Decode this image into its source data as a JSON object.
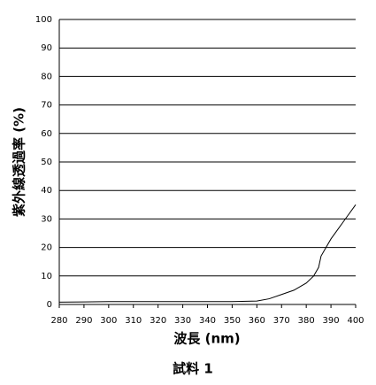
{
  "chart_data": {
    "type": "line",
    "title": "試料 1",
    "x_label": "波長 (nm)",
    "y_label": "紫外線透過率 (%)",
    "x": [
      280,
      290,
      300,
      310,
      320,
      330,
      340,
      350,
      360,
      365,
      370,
      375,
      380,
      383,
      385,
      386,
      388,
      390,
      395,
      400
    ],
    "series": [
      {
        "name": "試料 1",
        "color": "#000000",
        "values": [
          0.8,
          0.9,
          1,
          1,
          1,
          1,
          1,
          1,
          1.2,
          2,
          3.5,
          5,
          7.5,
          10,
          13,
          17,
          20,
          23,
          29,
          35
        ]
      }
    ],
    "xlim": [
      280,
      400
    ],
    "xticks": [
      280,
      290,
      300,
      310,
      320,
      330,
      340,
      350,
      360,
      370,
      380,
      390,
      400
    ],
    "ylim": [
      0,
      100
    ],
    "yticks": [
      0,
      10,
      20,
      30,
      40,
      50,
      60,
      70,
      80,
      90,
      100
    ],
    "grid": true
  }
}
